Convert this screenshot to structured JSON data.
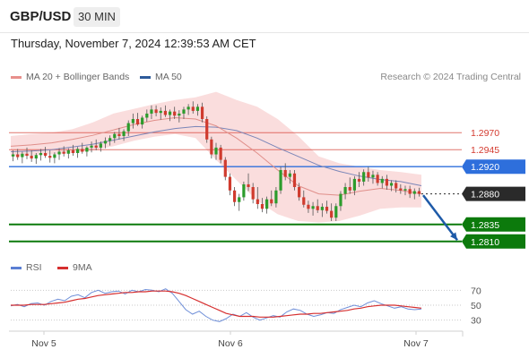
{
  "header": {
    "symbol": "GBP/USD",
    "timeframe": "30 MIN",
    "datetime": "Thursday, November 7, 2024 12:39:53 AM CET"
  },
  "legend": {
    "items": [
      {
        "label": "MA 20 + Bollinger Bands",
        "color": "#e8908c"
      },
      {
        "label": "MA 50",
        "color": "#2d5b9a"
      }
    ],
    "credit": "Research © 2024 Trading Central"
  },
  "rsi_legend": {
    "items": [
      {
        "label": "RSI",
        "color": "#5b7fd4"
      },
      {
        "label": "9MA",
        "color": "#d62f2f"
      }
    ]
  },
  "chart_data": [
    {
      "type": "candlestick",
      "title": "GBP/USD 30 MIN",
      "x_ticks": [
        "Nov 5",
        "Nov 6",
        "Nov 7"
      ],
      "ylim": [
        1.279,
        1.304
      ],
      "levels": [
        {
          "value": 1.297,
          "label": "1.2970",
          "kind": "resistance",
          "color": "#d43a2f"
        },
        {
          "value": 1.2945,
          "label": "1.2945",
          "kind": "resistance",
          "color": "#d43a2f"
        },
        {
          "value": 1.292,
          "label": "1.2920",
          "kind": "pivot",
          "color": "#2e6fdc"
        },
        {
          "value": 1.288,
          "label": "1.2880",
          "kind": "last",
          "color": "#2a2a2a"
        },
        {
          "value": 1.2835,
          "label": "1.2835",
          "kind": "support",
          "color": "#0c7a0c"
        },
        {
          "value": 1.281,
          "label": "1.2810",
          "kind": "support",
          "color": "#0c7a0c"
        }
      ],
      "forecast_arrow": {
        "from": 1.2878,
        "to": 1.2812,
        "color": "#1e5aa8"
      },
      "series": [
        {
          "name": "GBP/USD",
          "ohlc": [
            [
              1.2935,
              1.2944,
              1.2928,
              1.2938
            ],
            [
              1.2938,
              1.2946,
              1.293,
              1.2934
            ],
            [
              1.2934,
              1.2942,
              1.2925,
              1.2939
            ],
            [
              1.2939,
              1.2948,
              1.2931,
              1.2936
            ],
            [
              1.2936,
              1.2944,
              1.2927,
              1.2932
            ],
            [
              1.2932,
              1.294,
              1.2924,
              1.2937
            ],
            [
              1.2937,
              1.2946,
              1.2929,
              1.294
            ],
            [
              1.294,
              1.2949,
              1.2933,
              1.2936
            ],
            [
              1.2936,
              1.2944,
              1.2926,
              1.2933
            ],
            [
              1.2933,
              1.2941,
              1.2925,
              1.2938
            ],
            [
              1.2938,
              1.2947,
              1.293,
              1.2942
            ],
            [
              1.2942,
              1.295,
              1.2935,
              1.2939
            ],
            [
              1.2939,
              1.2947,
              1.2932,
              1.2944
            ],
            [
              1.2944,
              1.2952,
              1.2936,
              1.294
            ],
            [
              1.294,
              1.2949,
              1.2933,
              1.2946
            ],
            [
              1.2946,
              1.2955,
              1.2939,
              1.2942
            ],
            [
              1.2942,
              1.295,
              1.2935,
              1.2948
            ],
            [
              1.2948,
              1.2957,
              1.2941,
              1.2951
            ],
            [
              1.2951,
              1.296,
              1.2944,
              1.2948
            ],
            [
              1.2948,
              1.2957,
              1.2942,
              1.2954
            ],
            [
              1.2954,
              1.2963,
              1.2947,
              1.2958
            ],
            [
              1.2958,
              1.2966,
              1.2951,
              1.2962
            ],
            [
              1.2962,
              1.2971,
              1.2955,
              1.2968
            ],
            [
              1.2968,
              1.2977,
              1.296,
              1.2965
            ],
            [
              1.2965,
              1.2975,
              1.2958,
              1.2972
            ],
            [
              1.2972,
              1.2988,
              1.2965,
              1.2984
            ],
            [
              1.2984,
              1.2998,
              1.2976,
              1.299
            ],
            [
              1.299,
              1.2999,
              1.298,
              1.2982
            ],
            [
              1.2982,
              1.2995,
              1.2976,
              1.2992
            ],
            [
              1.2992,
              1.3004,
              1.2986,
              1.2998
            ],
            [
              1.2998,
              1.301,
              1.299,
              1.3004
            ],
            [
              1.3004,
              1.301,
              1.2994,
              1.2999
            ],
            [
              1.2999,
              1.3007,
              1.2989,
              1.3002
            ],
            [
              1.3002,
              1.301,
              1.2993,
              1.2996
            ],
            [
              1.2996,
              1.3004,
              1.2987,
              1.3001
            ],
            [
              1.3001,
              1.3008,
              1.299,
              1.2995
            ],
            [
              1.2995,
              1.3003,
              1.2985,
              1.2998
            ],
            [
              1.2998,
              1.3008,
              1.299,
              1.3004
            ],
            [
              1.3004,
              1.3012,
              1.2996,
              1.3008
            ],
            [
              1.3008,
              1.3016,
              1.2998,
              1.3002
            ],
            [
              1.3002,
              1.3012,
              1.2995,
              1.3008
            ],
            [
              1.3008,
              1.3014,
              1.2985,
              1.299
            ],
            [
              1.299,
              1.2994,
              1.2955,
              1.296
            ],
            [
              1.296,
              1.2964,
              1.2932,
              1.2938
            ],
            [
              1.2938,
              1.2955,
              1.293,
              1.2948
            ],
            [
              1.2948,
              1.2952,
              1.2925,
              1.293
            ],
            [
              1.293,
              1.2934,
              1.29,
              1.2905
            ],
            [
              1.2905,
              1.291,
              1.2878,
              1.2885
            ],
            [
              1.2885,
              1.289,
              1.2862,
              1.2868
            ],
            [
              1.2868,
              1.288,
              1.2855,
              1.2875
            ],
            [
              1.2875,
              1.2898,
              1.287,
              1.2894
            ],
            [
              1.2894,
              1.291,
              1.2884,
              1.289
            ],
            [
              1.289,
              1.2896,
              1.2866,
              1.2872
            ],
            [
              1.2872,
              1.289,
              1.2858,
              1.2865
            ],
            [
              1.2865,
              1.2874,
              1.2853,
              1.2858
            ],
            [
              1.2858,
              1.2876,
              1.2851,
              1.2872
            ],
            [
              1.2872,
              1.2885,
              1.2862,
              1.2866
            ],
            [
              1.2866,
              1.289,
              1.286,
              1.2885
            ],
            [
              1.2885,
              1.292,
              1.288,
              1.2915
            ],
            [
              1.2915,
              1.2925,
              1.29,
              1.2905
            ],
            [
              1.2905,
              1.2915,
              1.2895,
              1.291
            ],
            [
              1.291,
              1.2915,
              1.2885,
              1.289
            ],
            [
              1.289,
              1.2896,
              1.287,
              1.2875
            ],
            [
              1.2875,
              1.2885,
              1.286,
              1.2864
            ],
            [
              1.2864,
              1.287,
              1.2852,
              1.2858
            ],
            [
              1.2858,
              1.2868,
              1.2848,
              1.2862
            ],
            [
              1.2862,
              1.2872,
              1.2852,
              1.2856
            ],
            [
              1.2856,
              1.2866,
              1.2846,
              1.2861
            ],
            [
              1.2861,
              1.287,
              1.2851,
              1.2855
            ],
            [
              1.2855,
              1.2866,
              1.284,
              1.2845
            ],
            [
              1.2845,
              1.2866,
              1.284,
              1.2862
            ],
            [
              1.2862,
              1.2884,
              1.2855,
              1.288
            ],
            [
              1.288,
              1.2896,
              1.2872,
              1.289
            ],
            [
              1.289,
              1.2904,
              1.288,
              1.2885
            ],
            [
              1.2885,
              1.2906,
              1.2878,
              1.2902
            ],
            [
              1.2902,
              1.2912,
              1.289,
              1.2898
            ],
            [
              1.2898,
              1.2916,
              1.2892,
              1.2912
            ],
            [
              1.2912,
              1.292,
              1.2898,
              1.2904
            ],
            [
              1.2904,
              1.2914,
              1.2895,
              1.2908
            ],
            [
              1.2908,
              1.2912,
              1.2892,
              1.2896
            ],
            [
              1.2896,
              1.2906,
              1.2888,
              1.2902
            ],
            [
              1.2902,
              1.2908,
              1.2886,
              1.2892
            ],
            [
              1.2892,
              1.29,
              1.2884,
              1.2896
            ],
            [
              1.2896,
              1.29,
              1.2882,
              1.2888
            ],
            [
              1.2888,
              1.2894,
              1.288,
              1.2885
            ],
            [
              1.2885,
              1.2892,
              1.2878,
              1.2887
            ],
            [
              1.2887,
              1.2892,
              1.2874,
              1.288
            ],
            [
              1.288,
              1.2888,
              1.2872,
              1.2884
            ],
            [
              1.2884,
              1.2889,
              1.2876,
              1.288
            ]
          ]
        },
        {
          "name": "MA 20",
          "values": [
            1.295,
            1.2952,
            1.2955,
            1.296,
            1.2966,
            1.2974,
            1.2982,
            1.2988,
            1.2992,
            1.299,
            1.298,
            1.2962,
            1.294,
            1.2915,
            1.2892,
            1.288,
            1.2878,
            1.2884,
            1.2888,
            1.2885,
            1.288
          ]
        },
        {
          "name": "MA 50",
          "values": [
            1.2942,
            1.2943,
            1.2945,
            1.2949,
            1.2953,
            1.2959,
            1.2965,
            1.2971,
            1.2976,
            1.2979,
            1.2978,
            1.2973,
            1.2962,
            1.2948,
            1.2935,
            1.2922,
            1.2913,
            1.2906,
            1.2901,
            1.2898,
            1.2892
          ]
        },
        {
          "name": "Bollinger Upper",
          "values": [
            1.2965,
            1.2968,
            1.297,
            1.2975,
            1.2985,
            1.2998,
            1.3005,
            1.3012,
            1.3018,
            1.3022,
            1.303,
            1.3018,
            1.3008,
            1.299,
            1.2965,
            1.2935,
            1.2925,
            1.292,
            1.2915,
            1.2912,
            1.2908
          ]
        },
        {
          "name": "Bollinger Lower",
          "values": [
            1.2935,
            1.2936,
            1.2938,
            1.294,
            1.2944,
            1.295,
            1.2958,
            1.2964,
            1.2968,
            1.2962,
            1.293,
            1.29,
            1.287,
            1.285,
            1.284,
            1.2838,
            1.284,
            1.2848,
            1.2858,
            1.286,
            1.286
          ]
        }
      ]
    },
    {
      "type": "line",
      "title": "RSI",
      "x_ticks": [
        "Nov 5",
        "Nov 6",
        "Nov 7"
      ],
      "ylim": [
        20,
        80
      ],
      "y_ticks": [
        70,
        50,
        30
      ],
      "series": [
        {
          "name": "RSI",
          "values": [
            49,
            51,
            48,
            52,
            53,
            50,
            55,
            58,
            56,
            62,
            64,
            60,
            67,
            70,
            66,
            68,
            69,
            65,
            70,
            68,
            71,
            70,
            68,
            72,
            66,
            55,
            44,
            38,
            42,
            35,
            30,
            28,
            32,
            38,
            35,
            40,
            34,
            30,
            33,
            36,
            34,
            41,
            45,
            43,
            38,
            35,
            37,
            40,
            39,
            44,
            47,
            50,
            48,
            53,
            56,
            52,
            49,
            46,
            48,
            45,
            44,
            45
          ]
        },
        {
          "name": "9MA",
          "values": [
            50,
            50,
            50,
            51,
            51,
            51,
            52,
            53,
            54,
            56,
            58,
            59,
            61,
            63,
            64,
            65,
            66,
            67,
            67,
            68,
            68,
            69,
            69,
            69,
            68,
            66,
            63,
            59,
            55,
            51,
            47,
            43,
            39,
            37,
            35,
            35,
            35,
            34,
            34,
            34,
            35,
            36,
            37,
            38,
            38,
            39,
            39,
            40,
            41,
            42,
            43,
            45,
            46,
            48,
            49,
            50,
            50,
            50,
            49,
            48,
            47,
            46
          ]
        }
      ]
    }
  ]
}
